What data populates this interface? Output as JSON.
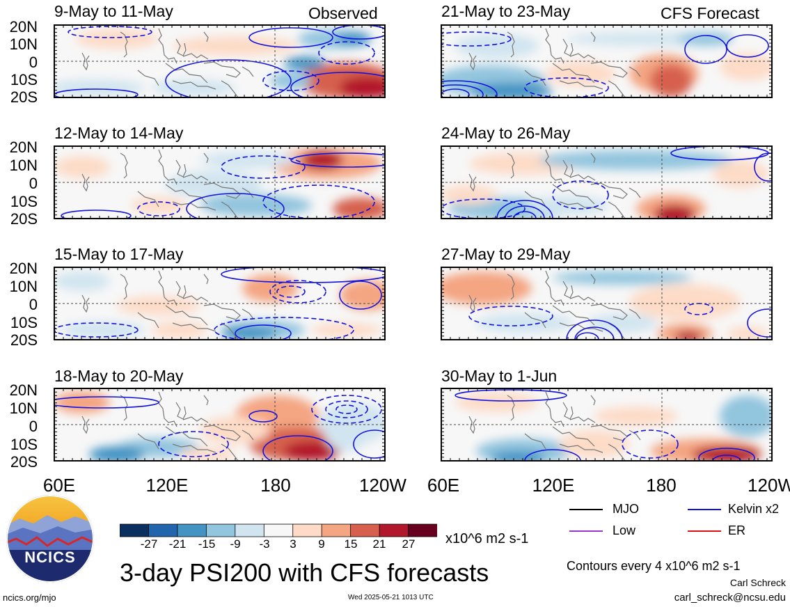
{
  "panels_left": {
    "header_label": "Observed",
    "titles": [
      "9-May to 11-May",
      "12-May to 14-May",
      "15-May to 17-May",
      "18-May to 20-May"
    ]
  },
  "panels_right": {
    "header_label": "CFS Forecast",
    "titles": [
      "21-May to 23-May",
      "24-May to 26-May",
      "27-May to 29-May",
      "30-May to 1-Jun"
    ]
  },
  "lat_labels": [
    "20N",
    "10N",
    "0",
    "10S",
    "20S"
  ],
  "lon_labels": [
    "60E",
    "120E",
    "180",
    "120W"
  ],
  "colorbar": {
    "ticks": [
      "-27",
      "-21",
      "-15",
      "-9",
      "-3",
      "3",
      "9",
      "15",
      "21",
      "27"
    ],
    "colors": [
      "#0b2f5e",
      "#2166ac",
      "#4393c3",
      "#92c5de",
      "#d1e5f0",
      "#f7f7f7",
      "#fddbc7",
      "#f4a582",
      "#d6604d",
      "#b2182b",
      "#67001f"
    ],
    "units": "x10^6 m2 s-1"
  },
  "legend": {
    "mjo": "MJO",
    "kelvin": "Kelvin x2",
    "low": "Low",
    "er": "ER",
    "colors": {
      "mjo": "#000000",
      "kelvin": "#1010e0",
      "low": "#9933cc",
      "er": "#e01010"
    }
  },
  "main_title": "3-day PSI200 with CFS forecasts",
  "contour_note": "Contours every 4 x10^6 m2 s-1",
  "author": "Carl Schreck",
  "email": "carl_schreck@ncsu.edu",
  "website": "ncics.org/mjo",
  "timestamp": "Wed 2025-05-21 1013 UTC",
  "logo_text": "NCICS"
}
